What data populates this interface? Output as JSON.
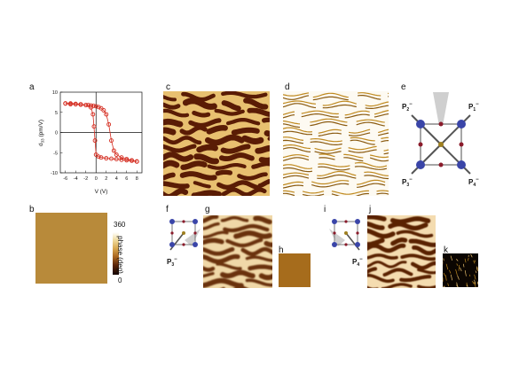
{
  "panel_labels": {
    "a": "a",
    "b": "b",
    "c": "c",
    "d": "d",
    "e": "e",
    "f": "f",
    "g": "g",
    "h": "h",
    "i": "i",
    "j": "j",
    "k": "k"
  },
  "chart_data": {
    "type": "scatter",
    "xlabel": "V (V)",
    "ylabel": "d33 (pm/V)",
    "xlim": [
      -7,
      9
    ],
    "ylim": [
      -10,
      10
    ],
    "xticks": [
      -6,
      -4,
      -2,
      0,
      2,
      4,
      6,
      8
    ],
    "yticks": [
      -10,
      -5,
      0,
      5,
      10
    ],
    "marker_color": "#d42a1e",
    "series": [
      {
        "x": [
          -6,
          -5,
          -4,
          -3,
          -2,
          -1.5,
          -1,
          -0.5,
          0,
          0.5,
          1,
          1.5,
          2,
          2.5,
          3,
          3.5,
          4,
          5,
          6,
          7,
          8
        ],
        "y": [
          7.2,
          7.0,
          7.0,
          6.9,
          6.8,
          6.8,
          6.7,
          6.6,
          6.5,
          6.3,
          6.0,
          5.5,
          4.5,
          2.0,
          -2.0,
          -4.5,
          -5.5,
          -6.2,
          -6.6,
          -6.9,
          -7.2
        ]
      },
      {
        "x": [
          8,
          7,
          6,
          5,
          4,
          3,
          2,
          1,
          0.5,
          0,
          -0.2,
          -0.4,
          -0.6,
          -1,
          -2,
          -3,
          -4,
          -5,
          -6
        ],
        "y": [
          -7.2,
          -7.0,
          -6.9,
          -6.8,
          -6.6,
          -6.5,
          -6.4,
          -6.2,
          -6.0,
          -5.5,
          -2.0,
          1.5,
          4.5,
          6.2,
          6.8,
          7.0,
          7.1,
          7.2,
          7.2
        ]
      }
    ]
  },
  "colorbar": {
    "max": "360",
    "min": "0",
    "label": "phase (deg)"
  },
  "diagram_e": {
    "p1": "P",
    "p1_sub": "1",
    "p2": "P",
    "p2_sub": "2",
    "p3": "P",
    "p3_sub": "3",
    "p4": "P",
    "p4_sub": "4",
    "sup": "−"
  },
  "diagram_f": {
    "p": "P",
    "p_sub": "3",
    "sup": "−"
  },
  "diagram_i": {
    "p": "P",
    "p_sub": "4",
    "sup": "−"
  },
  "colors": {
    "dark_domain": "#5a1c05",
    "light_domain": "#e8c070",
    "sphere": "#3a45a8",
    "atom_small": "#8a1a2a",
    "arrow_gray": "#cfcfcf",
    "map_b": "#b88a3a"
  }
}
